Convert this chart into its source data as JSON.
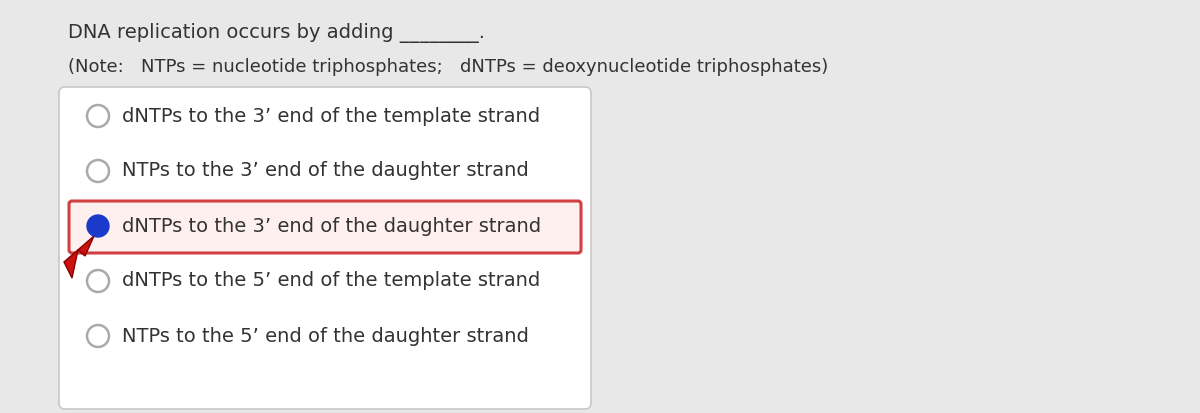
{
  "background_color": "#e8e8e8",
  "title_text": "DNA replication occurs by adding ________.",
  "note_text": "(Note:   NTPs = nucleotide triphosphates;   dNTPs = deoxynucleotide triphosphates)",
  "options": [
    "dNTPs to the 3’ end of the template strand",
    "NTPs to the 3’ end of the daughter strand",
    "dNTPs to the 3’ end of the daughter strand",
    "dNTPs to the 5’ end of the template strand",
    "NTPs to the 5’ end of the daughter strand"
  ],
  "correct_index": 2,
  "box_border": "#c8c8c8",
  "selected_border": "#d04040",
  "selected_fill": "#fff0f0",
  "radio_color": "#aaaaaa",
  "selected_radio_color": "#1a3acc",
  "text_color": "#333333",
  "title_fontsize": 14,
  "note_fontsize": 13,
  "option_fontsize": 14,
  "arrow_color": "#cc1111"
}
